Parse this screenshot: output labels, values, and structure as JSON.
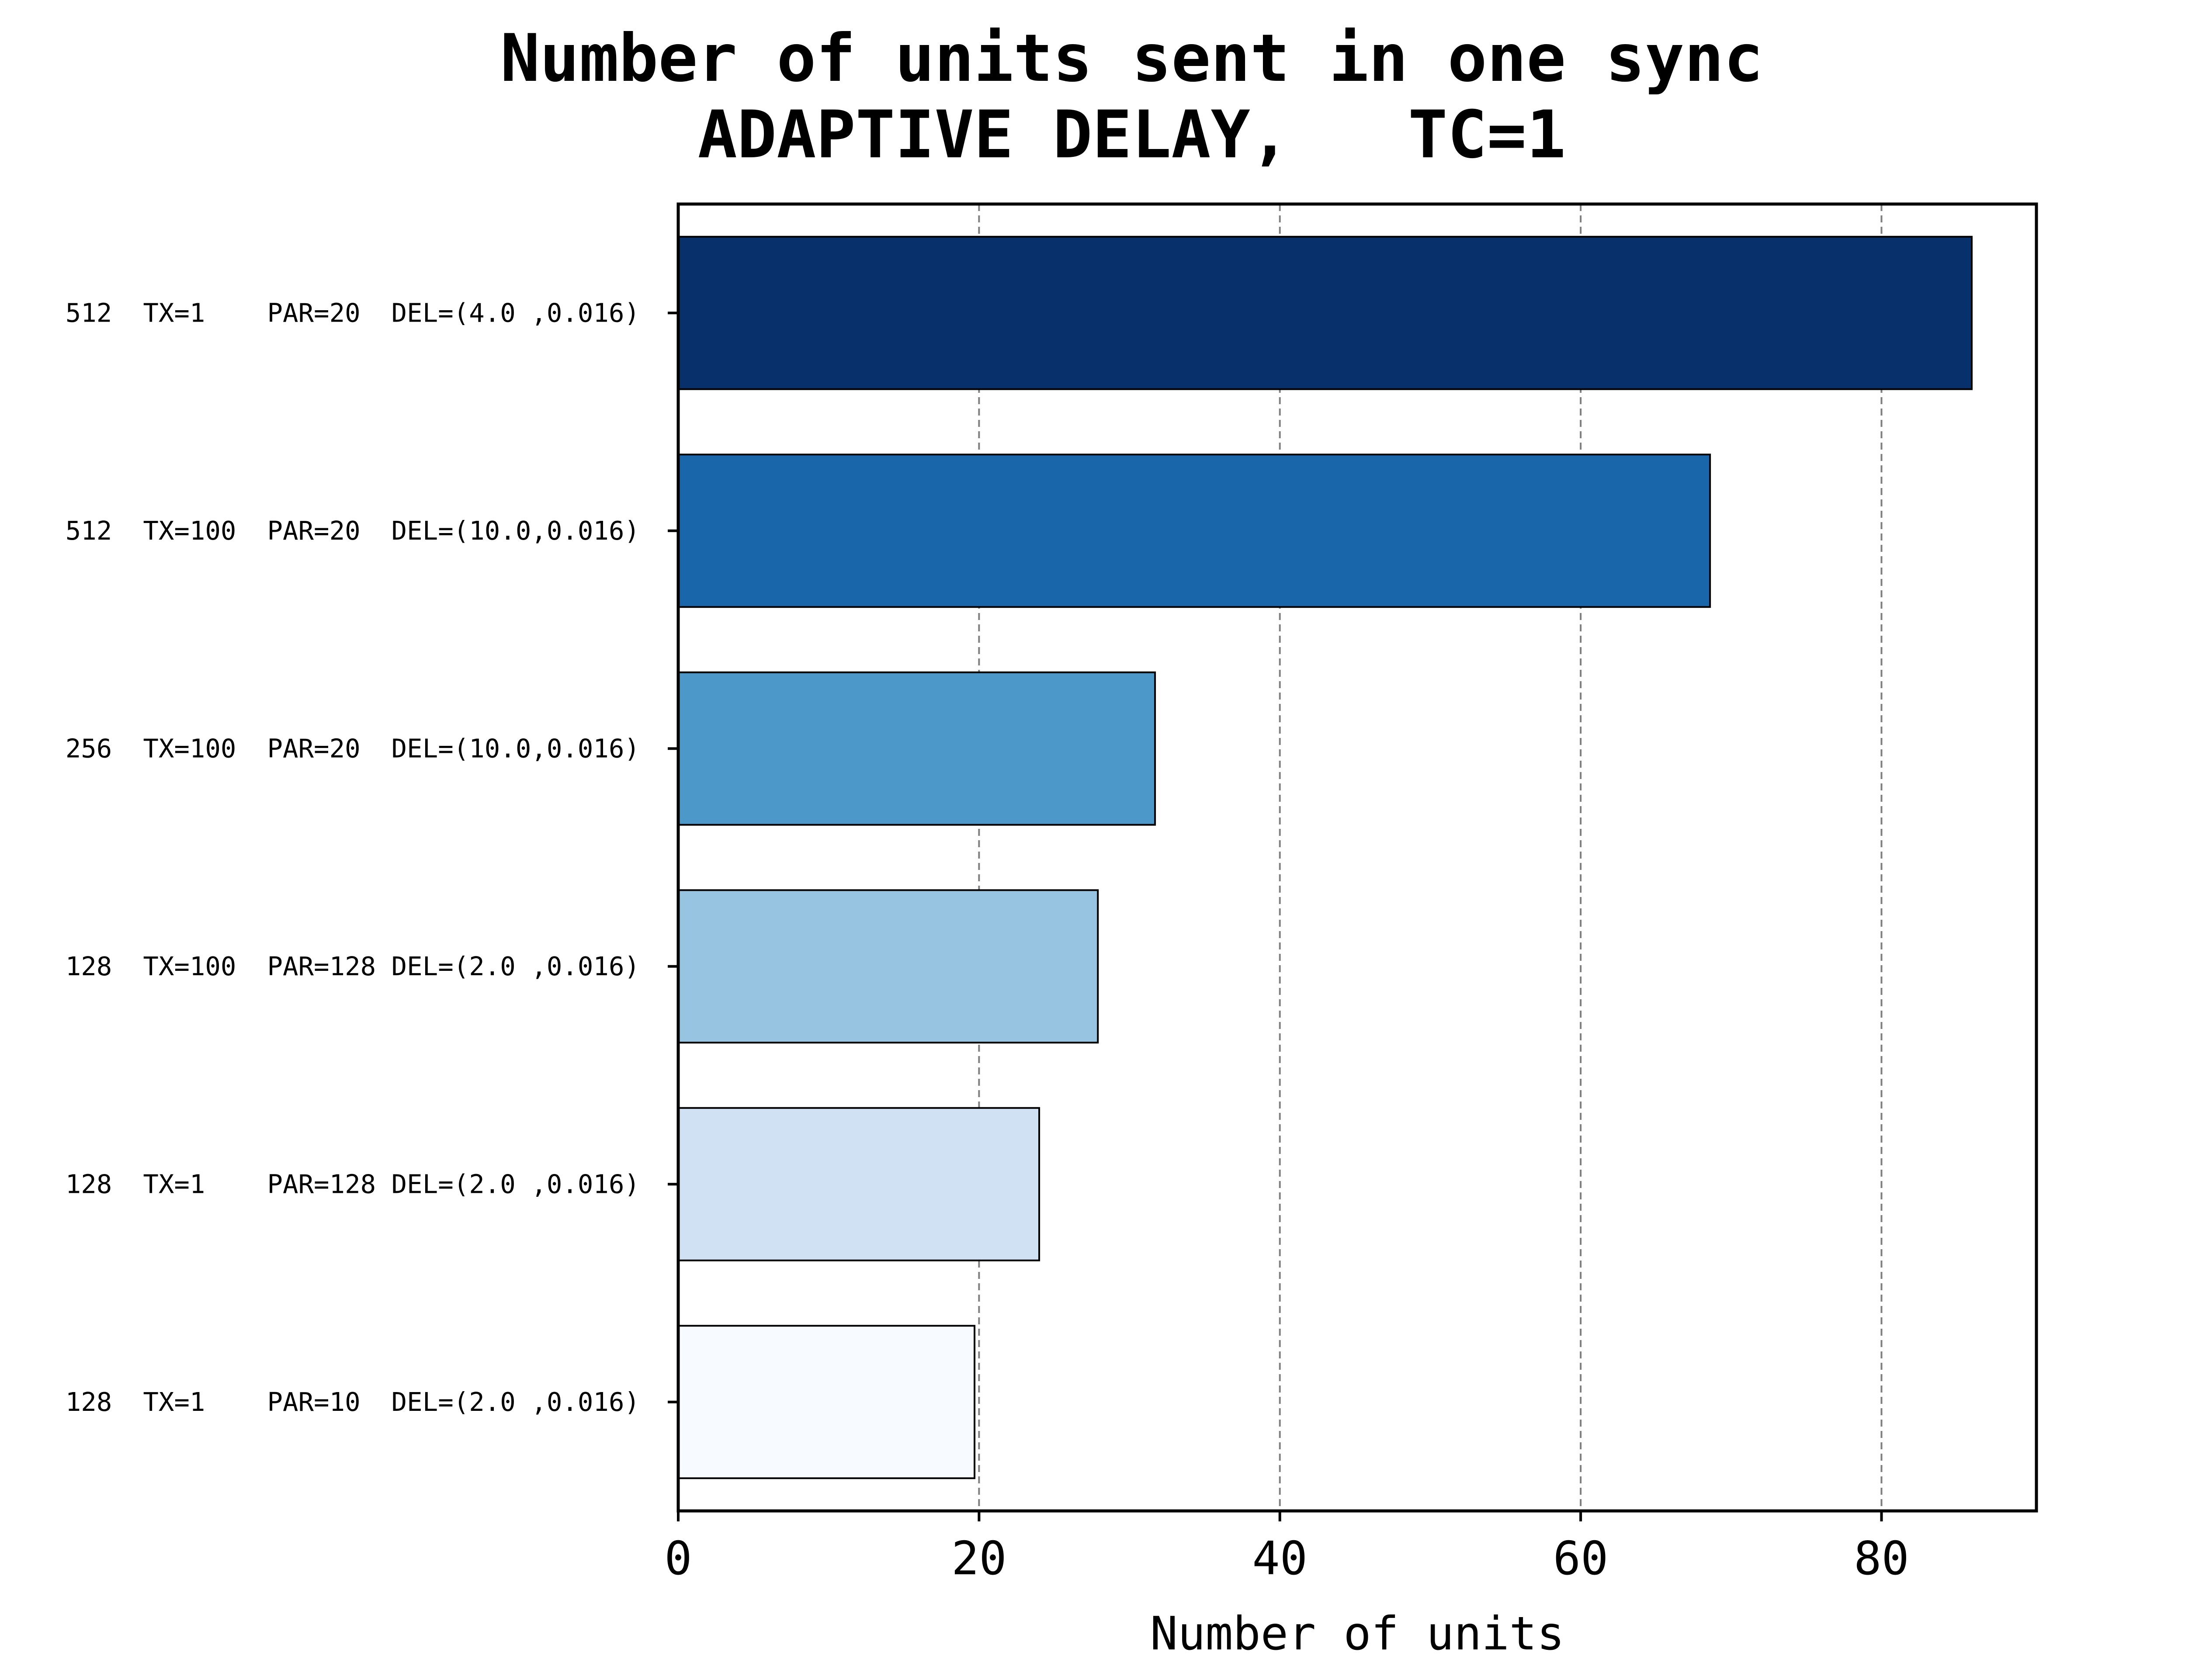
{
  "chart_data": {
    "type": "bar",
    "orientation": "horizontal",
    "title": "Number of units sent in one sync",
    "subtitle": "ADAPTIVE DELAY,   TC=1",
    "xlabel": "Number of units",
    "ylabel": "",
    "xlim": [
      0,
      90.3
    ],
    "xticks": [
      0,
      20,
      40,
      60,
      80
    ],
    "grid": "x-dashed",
    "legend": "none",
    "categories": [
      "512  TX=1    PAR=20  DEL=(4.0 ,0.016)",
      "512  TX=100  PAR=20  DEL=(10.0,0.016)",
      "256  TX=100  PAR=20  DEL=(10.0,0.016)",
      "128  TX=100  PAR=128 DEL=(2.0 ,0.016)",
      "128  TX=1    PAR=128 DEL=(2.0 ,0.016)",
      "128  TX=1    PAR=10  DEL=(2.0 ,0.016)"
    ],
    "values": [
      86,
      68.6,
      31.7,
      27.9,
      24,
      19.7
    ],
    "colors": [
      "#08306b",
      "#1a66ab",
      "#4b98c9",
      "#97c4e0",
      "#cfe1f2",
      "#f7fbff"
    ],
    "edge_color": "#000000"
  }
}
